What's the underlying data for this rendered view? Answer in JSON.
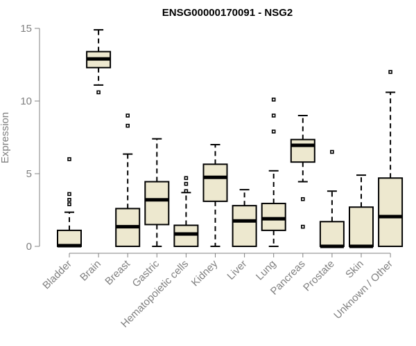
{
  "chart_data": {
    "type": "boxplot",
    "title": "ENSG00000170091 - NSG2",
    "xlabel": "",
    "ylabel": "Expression",
    "ylim": [
      0,
      15
    ],
    "yticks": [
      0,
      5,
      10,
      15
    ],
    "grid": false,
    "box_color": "#ede8cf",
    "categories": [
      "Bladder",
      "Brain",
      "Breast",
      "Gastric",
      "Hematopoietic cells",
      "Kidney",
      "Liver",
      "Lung",
      "Pancreas",
      "Prostate",
      "Skin",
      "Unknown / Other"
    ],
    "boxes": [
      {
        "q1": 0.0,
        "median": 0.05,
        "q3": 1.1,
        "whisker_low": 0.0,
        "whisker_high": 2.35,
        "outliers": [
          6.0,
          3.6,
          3.2,
          2.9
        ]
      },
      {
        "q1": 12.3,
        "median": 12.9,
        "q3": 13.4,
        "whisker_low": 11.1,
        "whisker_high": 14.9,
        "outliers": [
          10.6
        ]
      },
      {
        "q1": 0.0,
        "median": 1.35,
        "q3": 2.6,
        "whisker_low": 0.0,
        "whisker_high": 6.35,
        "outliers": [
          9.0,
          8.3
        ]
      },
      {
        "q1": 1.5,
        "median": 3.2,
        "q3": 4.45,
        "whisker_low": 0.0,
        "whisker_high": 7.4,
        "outliers": []
      },
      {
        "q1": 0.0,
        "median": 0.85,
        "q3": 1.45,
        "whisker_low": 0.0,
        "whisker_high": 3.7,
        "outliers": [
          4.7,
          4.3,
          3.8
        ]
      },
      {
        "q1": 3.1,
        "median": 4.75,
        "q3": 5.65,
        "whisker_low": 0.0,
        "whisker_high": 7.0,
        "outliers": []
      },
      {
        "q1": 0.0,
        "median": 1.75,
        "q3": 2.8,
        "whisker_low": 0.0,
        "whisker_high": 3.9,
        "outliers": []
      },
      {
        "q1": 1.1,
        "median": 1.9,
        "q3": 2.95,
        "whisker_low": 0.0,
        "whisker_high": 5.2,
        "outliers": [
          10.1,
          9.0,
          7.9
        ]
      },
      {
        "q1": 5.8,
        "median": 6.95,
        "q3": 7.35,
        "whisker_low": 4.45,
        "whisker_high": 9.0,
        "outliers": [
          3.25,
          1.35
        ]
      },
      {
        "q1": 0.0,
        "median": 0.0,
        "q3": 1.7,
        "whisker_low": 0.0,
        "whisker_high": 3.8,
        "outliers": [
          6.5
        ]
      },
      {
        "q1": 0.0,
        "median": 0.0,
        "q3": 2.7,
        "whisker_low": 0.0,
        "whisker_high": 4.9,
        "outliers": []
      },
      {
        "q1": 0.0,
        "median": 2.05,
        "q3": 4.7,
        "whisker_low": 0.0,
        "whisker_high": 10.6,
        "outliers": [
          12.0
        ]
      }
    ]
  }
}
